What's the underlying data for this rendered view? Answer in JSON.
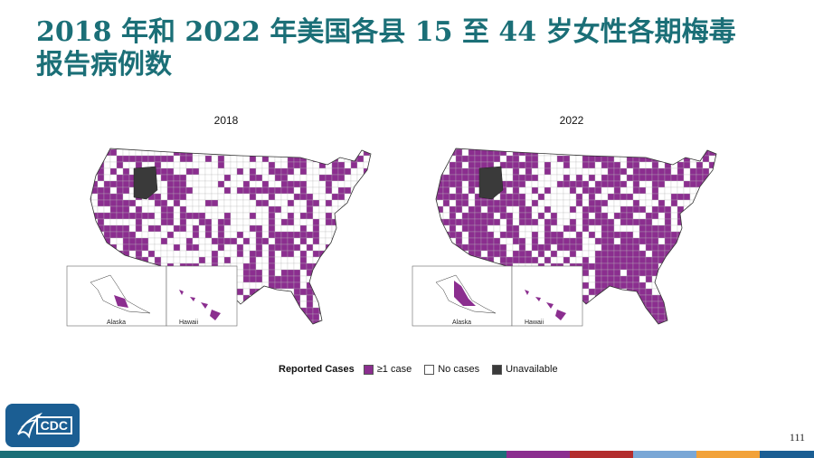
{
  "title": "2018 年和 2022 年美国各县 15 至 44 岁女性各期梅毒报告病例数",
  "maps": [
    {
      "year": "2018",
      "insets": {
        "alaska": "Alaska",
        "hawaii": "Hawaii"
      },
      "density": 0.42
    },
    {
      "year": "2022",
      "insets": {
        "alaska": "Alaska",
        "hawaii": "Hawaii"
      },
      "density": 0.62
    }
  ],
  "legend": {
    "title": "Reported Cases",
    "items": [
      {
        "label": "≥1 case",
        "color": "#8b2e8f"
      },
      {
        "label": "No cases",
        "color": "#ffffff"
      },
      {
        "label": "Unavailable",
        "color": "#3a3a3a"
      }
    ]
  },
  "logo": {
    "text": "CDC"
  },
  "page_number": "111",
  "colors": {
    "title": "#1b6f77",
    "case": "#8b2e8f",
    "none": "#ffffff",
    "unavailable": "#3a3a3a",
    "bottom_bar": [
      "#1b6f77",
      "#1b6f77",
      "#8b2e8f",
      "#b32d2e",
      "#7aa7d6",
      "#f2a23a",
      "#1b5e93"
    ]
  }
}
